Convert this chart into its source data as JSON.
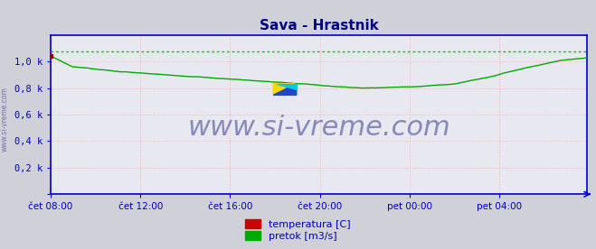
{
  "title": "Sava - Hrastnik",
  "title_color": "#000080",
  "title_fontsize": 11,
  "bg_color": "#d0d0d8",
  "plot_bg_color": "#e8e8f0",
  "ylim": [
    0,
    1.2
  ],
  "yticks": [
    0.0,
    0.2,
    0.4,
    0.6,
    0.8,
    1.0
  ],
  "ytick_labels": [
    "",
    "0,2 k",
    "0,4 k",
    "0,6 k",
    "0,8 k",
    "1,0 k"
  ],
  "xtick_labels": [
    "čet 08:00",
    "čet 12:00",
    "čet 16:00",
    "čet 20:00",
    "pet 00:00",
    "pet 04:00"
  ],
  "xtick_positions": [
    0,
    48,
    96,
    144,
    192,
    240
  ],
  "n_points": 288,
  "watermark": "www.si-vreme.com",
  "watermark_color": "#8888bb",
  "watermark_fontsize": 22,
  "legend_items": [
    {
      "label": "temperatura [C]",
      "color": "#cc0000"
    },
    {
      "label": "pretok [m3/s]",
      "color": "#00aa00"
    }
  ],
  "grid_color": "#ffaaaa",
  "axis_color": "#0000cc",
  "tick_label_color": "#0000aa",
  "dotted_line_value": 1.075,
  "dotted_line_color": "#00cc00",
  "pretok_keypoints_t": [
    0.0,
    0.04,
    0.12,
    0.3,
    0.46,
    0.52,
    0.58,
    0.62,
    0.68,
    0.75,
    0.82,
    0.88,
    0.95,
    1.0
  ],
  "pretok_keypoints_v": [
    1.04,
    0.96,
    0.93,
    0.875,
    0.825,
    0.805,
    0.795,
    0.795,
    0.805,
    0.825,
    0.88,
    0.94,
    1.0,
    1.02
  ]
}
